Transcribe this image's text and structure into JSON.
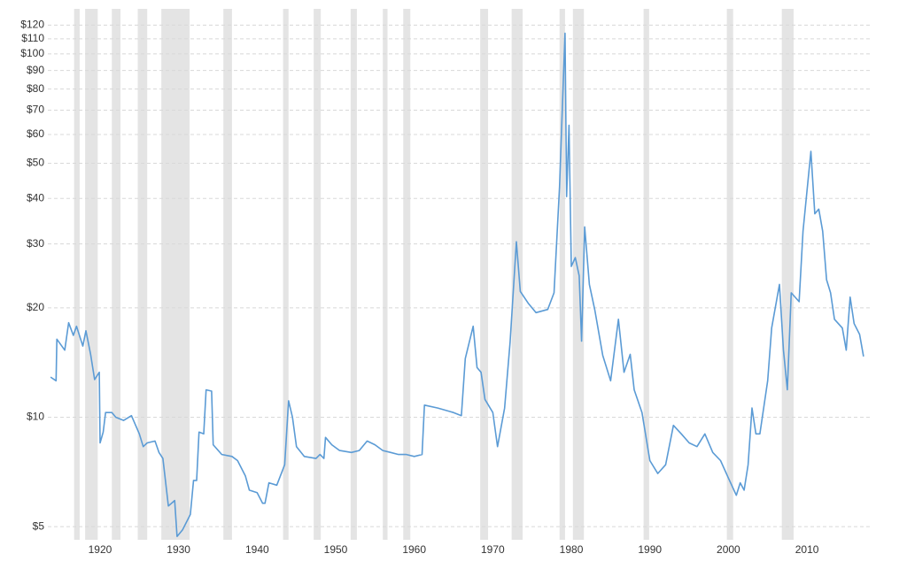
{
  "chart_data": {
    "type": "line",
    "log_scale": true,
    "grid": true,
    "color": "#5b9bd5",
    "shade_color": "#e4e4e4",
    "xlim": [
      1912.9,
      2018.9
    ],
    "ylim": [
      4.6,
      133
    ],
    "xticks": [
      1920,
      1930,
      1940,
      1950,
      1960,
      1970,
      1980,
      1990,
      2000,
      2010
    ],
    "yticks": [
      {
        "value": 5,
        "label": "$5"
      },
      {
        "value": 10,
        "label": "$10"
      },
      {
        "value": 20,
        "label": "$20"
      },
      {
        "value": 30,
        "label": "$30"
      },
      {
        "value": 40,
        "label": "$40"
      },
      {
        "value": 50,
        "label": "$50"
      },
      {
        "value": 60,
        "label": "$60"
      },
      {
        "value": 70,
        "label": "$70"
      },
      {
        "value": 80,
        "label": "$80"
      },
      {
        "value": 90,
        "label": "$90"
      },
      {
        "value": 100,
        "label": "$100"
      },
      {
        "value": 110,
        "label": "$110"
      },
      {
        "value": 120,
        "label": "$120"
      }
    ],
    "recessions": [
      [
        1916.7,
        1917.4
      ],
      [
        1918.1,
        1919.7
      ],
      [
        1921.5,
        1922.6
      ],
      [
        1924.8,
        1926.0
      ],
      [
        1927.8,
        1931.4
      ],
      [
        1935.7,
        1936.8
      ],
      [
        1943.3,
        1944.0
      ],
      [
        1947.2,
        1948.1
      ],
      [
        1951.9,
        1952.7
      ],
      [
        1956.0,
        1956.6
      ],
      [
        1958.6,
        1959.5
      ],
      [
        1968.4,
        1969.4
      ],
      [
        1972.4,
        1973.8
      ],
      [
        1978.5,
        1979.2
      ],
      [
        1980.2,
        1981.6
      ],
      [
        1989.2,
        1989.9
      ],
      [
        1999.8,
        2000.6
      ],
      [
        2006.8,
        2008.3
      ]
    ],
    "x": [
      1913.7,
      1914.4,
      1914.5,
      1915.5,
      1916.0,
      1916.6,
      1917.0,
      1917.8,
      1918.2,
      1918.8,
      1919.3,
      1919.9,
      1920.0,
      1920.4,
      1920.7,
      1921.5,
      1922,
      1923,
      1924,
      1925,
      1925.5,
      1926,
      1927,
      1927.5,
      1928,
      1928.7,
      1929.5,
      1929.8,
      1930.5,
      1931.5,
      1931.9,
      1932.3,
      1932.6,
      1933.2,
      1933.5,
      1934.2,
      1934.4,
      1935.5,
      1936.8,
      1937.5,
      1938.5,
      1939,
      1940,
      1940.7,
      1941,
      1941.5,
      1942.5,
      1943.5,
      1944,
      1944.5,
      1945,
      1946,
      1947.5,
      1948,
      1948.5,
      1948.7,
      1949.5,
      1950.5,
      1952,
      1953,
      1954,
      1955,
      1956,
      1957,
      1958,
      1959,
      1960,
      1961,
      1961.3,
      1963,
      1965,
      1966,
      1966.5,
      1967.5,
      1968,
      1968.5,
      1969,
      1970,
      1970.6,
      1971.5,
      1972.2,
      1973,
      1973.5,
      1974.5,
      1975.5,
      1977,
      1977.8,
      1978.5,
      1979.2,
      1979.4,
      1979.7,
      1980.0,
      1980.5,
      1981,
      1981.3,
      1981.7,
      1982.3,
      1983,
      1984,
      1985,
      1986,
      1986.7,
      1987.5,
      1988,
      1989,
      1990,
      1991,
      1992,
      1993,
      1994,
      1995,
      1996,
      1997,
      1998,
      1999,
      2000,
      2001,
      2001.5,
      2002,
      2002.5,
      2003,
      2003.5,
      2004,
      2005,
      2005.5,
      2006.5,
      2007,
      2007.5,
      2008,
      2009,
      2009.5,
      2010.5,
      2011,
      2011.5,
      2012,
      2012.5,
      2013,
      2013.5,
      2014.5,
      2015,
      2015.5,
      2016,
      2016.7,
      2017.2
    ],
    "values": [
      12.9,
      12.6,
      16.4,
      15.3,
      18.2,
      16.8,
      17.8,
      15.7,
      17.3,
      14.9,
      12.7,
      13.3,
      8.5,
      9.1,
      10.3,
      10.3,
      10.0,
      9.8,
      10.1,
      9.0,
      8.3,
      8.5,
      8.6,
      8.0,
      7.7,
      5.7,
      5.9,
      4.7,
      4.9,
      5.4,
      6.7,
      6.7,
      9.1,
      9.0,
      11.9,
      11.8,
      8.4,
      7.9,
      7.8,
      7.6,
      6.9,
      6.3,
      6.2,
      5.8,
      5.8,
      6.6,
      6.5,
      7.4,
      11.1,
      10.0,
      8.3,
      7.8,
      7.7,
      7.9,
      7.7,
      8.8,
      8.4,
      8.1,
      8.0,
      8.1,
      8.6,
      8.4,
      8.1,
      8.0,
      7.9,
      7.9,
      7.8,
      7.9,
      10.8,
      10.6,
      10.3,
      10.1,
      14.5,
      17.8,
      13.7,
      13.3,
      11.2,
      10.3,
      8.3,
      10.6,
      16.1,
      30.4,
      22.2,
      20.6,
      19.4,
      19.8,
      22.0,
      43.0,
      114,
      40.5,
      63.6,
      26.0,
      27.5,
      24.5,
      16.2,
      33.4,
      23.2,
      19.7,
      14.8,
      12.6,
      18.6,
      13.3,
      14.9,
      11.9,
      10.3,
      7.6,
      7.0,
      7.4,
      9.5,
      9.0,
      8.5,
      8.3,
      9.0,
      8.0,
      7.6,
      6.8,
      6.1,
      6.6,
      6.3,
      7.4,
      10.6,
      9.0,
      9.0,
      12.6,
      17.6,
      23.2,
      15.3,
      11.9,
      22.0,
      20.8,
      32.5,
      53.9,
      36.3,
      37.4,
      32.5,
      23.9,
      22.0,
      18.6,
      17.6,
      15.3,
      21.4,
      18.1,
      16.9,
      14.7
    ]
  }
}
